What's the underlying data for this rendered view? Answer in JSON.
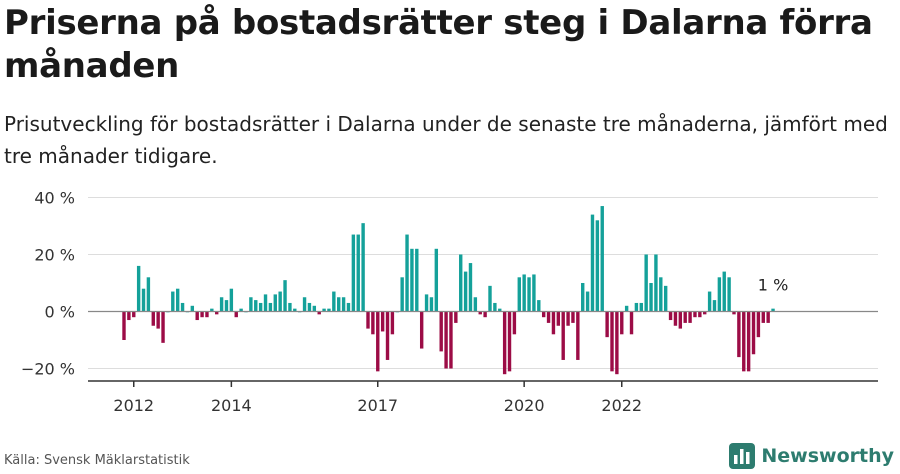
{
  "title": "Priserna på bostadsrätter steg i Dalarna förra månaden",
  "subtitle": "Prisutveckling för bostadsrätter i Dalarna under de senaste tre månaderna, jämfört med tre månader tidigare.",
  "source": "Källa: Svensk Mäklarstatistik",
  "brand": "Newsworthy",
  "colors": {
    "positive": "#14a19a",
    "negative": "#9c0c46",
    "axis": "#333333",
    "grid": "#dddddd",
    "brand": "#2d7c6f"
  },
  "chart_data": {
    "type": "bar",
    "unit": "%",
    "y_ticks": [
      40,
      20,
      0,
      -20
    ],
    "y_tick_labels": [
      "40 %",
      "20 %",
      "0 %",
      "−20 %"
    ],
    "ylim": [
      -24,
      42
    ],
    "x_ticks": [
      {
        "label": "2012",
        "index": 2
      },
      {
        "label": "2014",
        "index": 22
      },
      {
        "label": "2017",
        "index": 52
      },
      {
        "label": "2020",
        "index": 82
      },
      {
        "label": "2022",
        "index": 102
      }
    ],
    "last_label": "1 %",
    "values": [
      -10,
      -3,
      -2,
      16,
      8,
      12,
      -5,
      -6,
      -11,
      0,
      7,
      8,
      3,
      0,
      2,
      -3,
      -2,
      -2,
      1,
      -1,
      5,
      4,
      8,
      -2,
      1,
      0,
      5,
      4,
      3,
      6,
      3,
      6,
      7,
      11,
      3,
      1,
      0,
      5,
      3,
      2,
      -1,
      1,
      1,
      7,
      5,
      5,
      3,
      27,
      27,
      31,
      -6,
      -8,
      -21,
      -7,
      -17,
      -8,
      0,
      12,
      27,
      22,
      22,
      -13,
      6,
      5,
      22,
      -14,
      -20,
      -20,
      -4,
      20,
      14,
      17,
      5,
      -1,
      -2,
      9,
      3,
      1,
      -22,
      -21,
      -8,
      12,
      13,
      12,
      13,
      4,
      -2,
      -4,
      -8,
      -5,
      -17,
      -5,
      -4,
      -17,
      10,
      7,
      34,
      32,
      37,
      -9,
      -21,
      -22,
      -8,
      2,
      -8,
      3,
      3,
      20,
      10,
      20,
      12,
      9,
      -3,
      -5,
      -6,
      -4,
      -4,
      -2,
      -2,
      -1,
      7,
      4,
      12,
      14,
      12,
      -1,
      -16,
      -21,
      -21,
      -15,
      -9,
      -4,
      -4,
      1
    ]
  }
}
